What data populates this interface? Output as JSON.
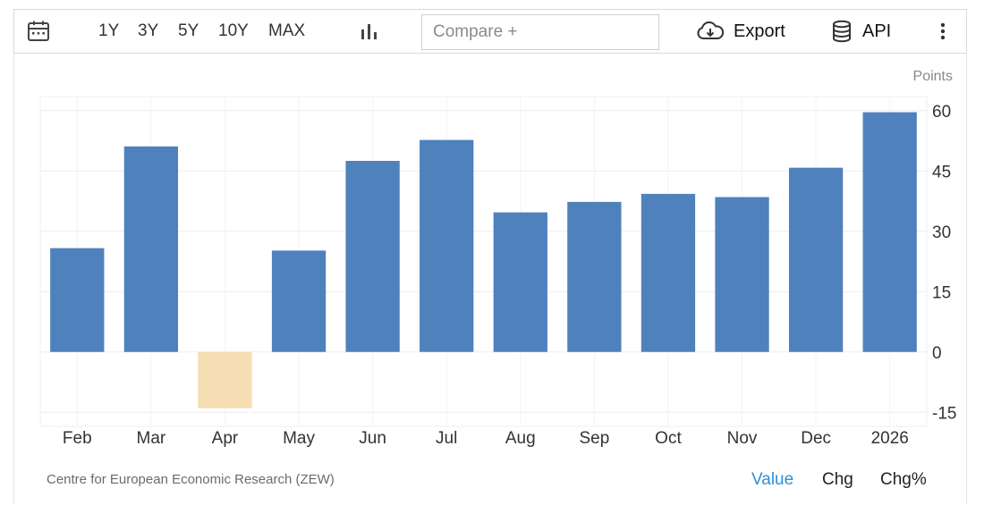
{
  "toolbar": {
    "calendar_icon": "calendar-icon",
    "ranges": [
      "1Y",
      "3Y",
      "5Y",
      "10Y",
      "MAX"
    ],
    "chart_type_icon": "bar-chart-icon",
    "compare_placeholder": "Compare +",
    "export_label": "Export",
    "export_icon": "cloud-download-icon",
    "api_label": "API",
    "api_icon": "database-icon",
    "more_icon": "vertical-ellipsis-icon"
  },
  "footer": {
    "source": "Centre for European Economic Research (ZEW)",
    "views": [
      "Value",
      "Chg",
      "Chg%"
    ],
    "active_view": "Value",
    "active_color": "#2f8fd8"
  },
  "chart_data": {
    "type": "bar",
    "unit_label": "Points",
    "categories": [
      "Feb",
      "Mar",
      "Apr",
      "May",
      "Jun",
      "Jul",
      "Aug",
      "Sep",
      "Oct",
      "Nov",
      "Dec",
      "2026"
    ],
    "values": [
      25.8,
      51.1,
      -14.0,
      25.2,
      47.5,
      52.7,
      34.7,
      37.3,
      39.3,
      38.5,
      45.8,
      59.6
    ],
    "ylim": [
      -18.5,
      63.5
    ],
    "yticks": [
      60,
      45,
      30,
      15,
      0,
      -15
    ],
    "positive_color": "#4f81bd",
    "negative_color": "#f5deb3",
    "grid": true,
    "y_axis_side": "right"
  }
}
